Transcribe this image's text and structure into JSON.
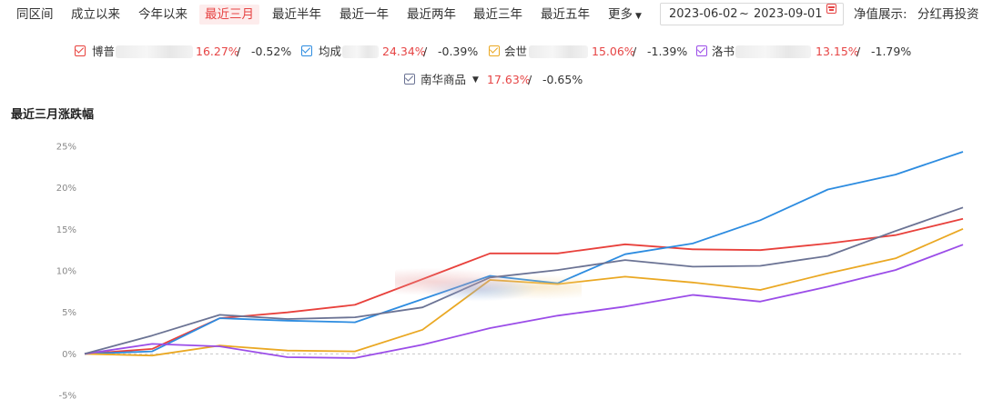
{
  "range_tabs": [
    {
      "label": "同区间",
      "active": false
    },
    {
      "label": "成立以来",
      "active": false
    },
    {
      "label": "今年以来",
      "active": false
    },
    {
      "label": "最近三月",
      "active": true
    },
    {
      "label": "最近半年",
      "active": false
    },
    {
      "label": "最近一年",
      "active": false
    },
    {
      "label": "最近两年",
      "active": false
    },
    {
      "label": "最近三年",
      "active": false
    },
    {
      "label": "最近五年",
      "active": false
    }
  ],
  "more_label": "更多",
  "date_range": {
    "start": "2023-06-02",
    "separator": "~",
    "end": "2023-09-01"
  },
  "nav_display": {
    "label": "净值展示:",
    "value": "分红再投资"
  },
  "legend": [
    {
      "name": "博普",
      "return": "16.27%",
      "separator": " / ",
      "rank_change": "-0.52%",
      "color": "#e8413c"
    },
    {
      "name": "均成",
      "return": "24.34%",
      "separator": " / ",
      "rank_change": "-0.39%",
      "color": "#2d8ce0"
    },
    {
      "name": "会世",
      "return": "15.06%",
      "separator": " / ",
      "rank_change": "-1.39%",
      "color": "#eaa823"
    },
    {
      "name": "洛书",
      "return": "13.15%",
      "separator": " / ",
      "rank_change": "-1.79%",
      "color": "#9b4de8"
    },
    {
      "name": "南华商品",
      "return": "17.63%",
      "separator": " / ",
      "rank_change": "-0.65%",
      "color": "#6b7394"
    }
  ],
  "chart_data": {
    "type": "line",
    "title": "最近三月涨跌幅",
    "y_tick_labels": [
      "25%",
      "20%",
      "15%",
      "10%",
      "5%",
      "0%",
      "-5%"
    ],
    "ylim": [
      -5,
      25
    ],
    "grid": false,
    "zero_line": "dashed",
    "x_axis_labels_visible": false,
    "series": [
      {
        "name": "博普",
        "color": "#e8413c",
        "values": [
          0,
          0.6,
          4.3,
          5.0,
          5.9,
          9.0,
          12.1,
          12.1,
          13.2,
          12.6,
          12.5,
          13.3,
          14.3,
          16.27
        ]
      },
      {
        "name": "均成",
        "color": "#2d8ce0",
        "values": [
          0,
          0.3,
          4.3,
          4.0,
          3.8,
          6.6,
          9.4,
          8.5,
          12.0,
          13.3,
          16.1,
          19.8,
          21.6,
          24.34
        ]
      },
      {
        "name": "会世",
        "color": "#eaa823",
        "values": [
          0,
          -0.2,
          1.0,
          0.4,
          0.3,
          2.9,
          8.9,
          8.4,
          9.3,
          8.6,
          7.7,
          9.7,
          11.5,
          15.06
        ]
      },
      {
        "name": "洛书",
        "color": "#9b4de8",
        "values": [
          0,
          1.2,
          0.9,
          -0.4,
          -0.5,
          1.1,
          3.1,
          4.6,
          5.7,
          7.1,
          6.3,
          8.1,
          10.1,
          13.15
        ]
      },
      {
        "name": "南华商品",
        "color": "#6b7394",
        "values": [
          0,
          2.2,
          4.7,
          4.2,
          4.4,
          5.6,
          9.2,
          10.1,
          11.3,
          10.5,
          10.6,
          11.8,
          14.8,
          17.63
        ]
      }
    ]
  }
}
